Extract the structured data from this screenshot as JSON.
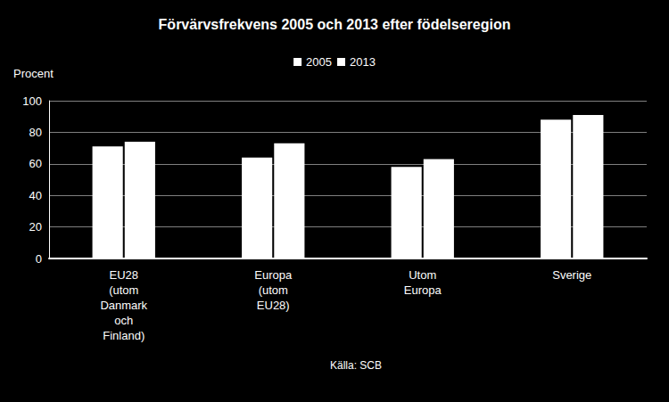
{
  "chart_data": {
    "type": "bar",
    "title": "Förvärvsfrekvens 2005 och 2013 efter födelseregion",
    "y_label": "Procent",
    "source": "Källa: SCB",
    "categories": [
      "EU28 (utom Danmark och Finland)",
      "Europa (utom EU28)",
      "Utom Europa",
      "Sverige"
    ],
    "series": [
      {
        "name": "2005",
        "color": "#ffffff",
        "values": [
          71,
          64,
          58,
          88
        ]
      },
      {
        "name": "2013",
        "color": "#ffffff",
        "values": [
          74,
          73,
          63,
          91
        ]
      }
    ],
    "ylim": [
      0,
      100
    ],
    "yticks": [
      0,
      20,
      40,
      60,
      80,
      100
    ],
    "grid": true,
    "legend": "top"
  }
}
